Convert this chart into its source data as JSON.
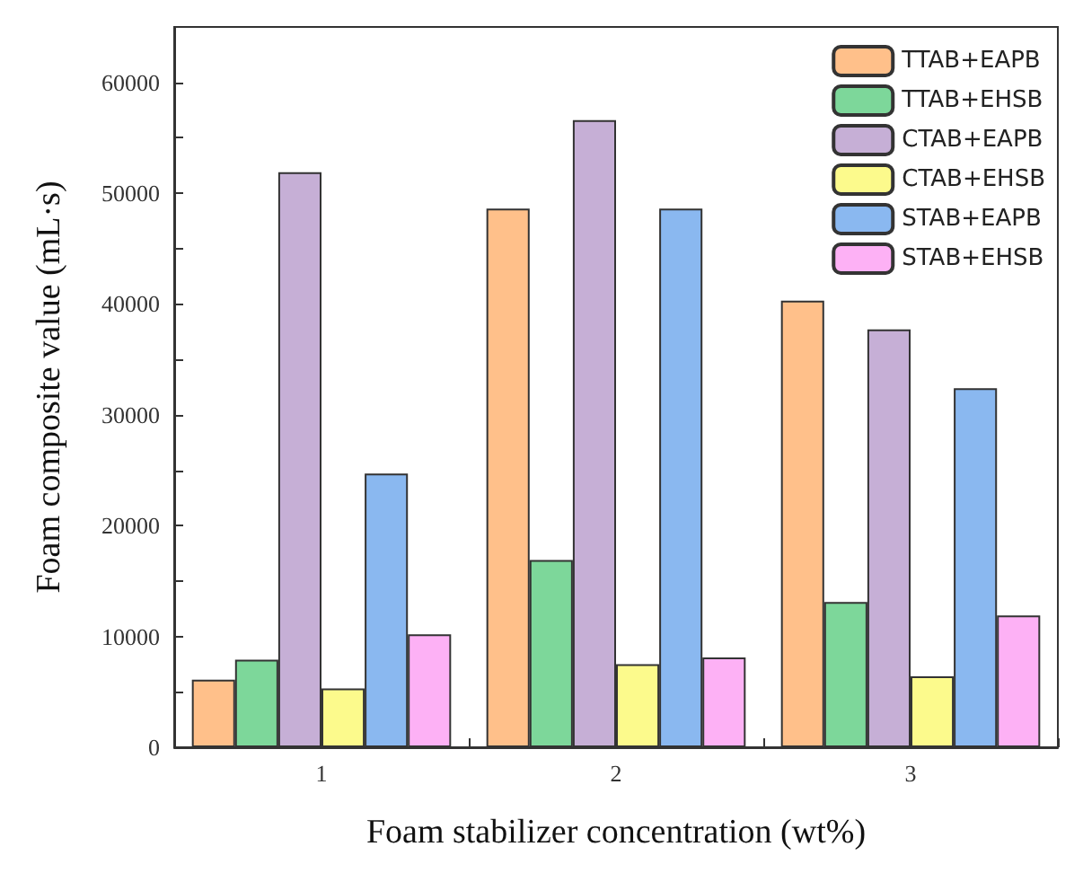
{
  "chart_data": {
    "type": "bar",
    "xlabel": "Foam stabilizer concentration (wt%)",
    "ylabel": "Foam composite value (mL·s)",
    "categories": [
      "1",
      "2",
      "3"
    ],
    "series": [
      {
        "name": "TTAB+EAPB",
        "color": "#ffc08a",
        "values": [
          6100,
          48600,
          40300
        ]
      },
      {
        "name": "TTAB+EHSB",
        "color": "#7dd79a",
        "values": [
          7900,
          16900,
          13100
        ]
      },
      {
        "name": "CTAB+EAPB",
        "color": "#c6afd6",
        "values": [
          51900,
          56600,
          37700
        ]
      },
      {
        "name": "CTAB+EHSB",
        "color": "#fcfa8c",
        "values": [
          5300,
          7500,
          6400
        ]
      },
      {
        "name": "STAB+EAPB",
        "color": "#8ab8f0",
        "values": [
          24700,
          48600,
          32400
        ]
      },
      {
        "name": "STAB+EHSB",
        "color": "#fdb1f5",
        "values": [
          10200,
          8100,
          11900
        ]
      }
    ],
    "ylim": [
      0,
      65000
    ],
    "yticks": [
      0,
      {
        "value": 5000,
        "label": null
      },
      10000,
      {
        "value": 15000,
        "label": null
      },
      20000,
      {
        "value": 25000,
        "label": null
      },
      30000,
      {
        "value": 35000,
        "label": null
      },
      40000,
      {
        "value": 45000,
        "label": null
      },
      50000,
      {
        "value": 55000,
        "label": null
      },
      60000
    ],
    "legend": "top right",
    "grid": false
  }
}
